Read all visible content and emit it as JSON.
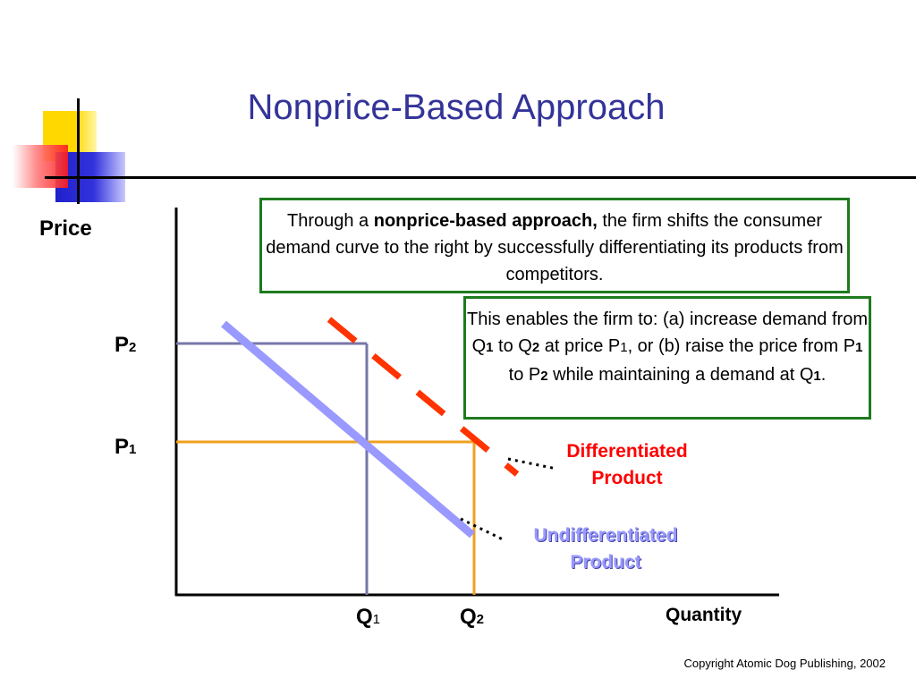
{
  "title": "Nonprice-Based Approach",
  "axes": {
    "y_label": "Price",
    "x_label": "Quantity"
  },
  "ticks": {
    "p2": {
      "main": "P",
      "sub": "2"
    },
    "p1": {
      "main": "P",
      "sub": "1"
    },
    "q1": {
      "main": "Q",
      "sub": "1"
    },
    "q2": {
      "main": "Q",
      "sub": "2"
    }
  },
  "box1": {
    "pre": "Through a ",
    "bold": "nonprice-based approach,",
    "post": " the firm shifts the consumer demand curve to the right by successfully differentiating its products from competitors."
  },
  "box2": {
    "t1": "This enables the firm to: (a) increase demand from Q",
    "s1": "1",
    "t2": " to Q",
    "s2": "2",
    "t3": " at price P",
    "s3": "1",
    "t4": ", or (b) raise the price from P",
    "s4": "1",
    "t5": " to P",
    "s5": "2",
    "t6": " while maintaining a demand at Q",
    "s6": "1",
    "t7": "."
  },
  "curves": {
    "differentiated": {
      "line1": "Differentiated",
      "line2": "Product"
    },
    "undifferentiated": {
      "line1": "Undifferentiated",
      "line2": "Product"
    }
  },
  "colors": {
    "title": "#333399",
    "differentiated_curve": "#ff3300",
    "undifferentiated_curve": "#9999ff",
    "p1_q2_lines": "#f0a020",
    "p2_q1_lines": "#7777aa",
    "box_border": "#1e7a1e"
  },
  "copyright": "Copyright Atomic Dog Publishing, 2002"
}
